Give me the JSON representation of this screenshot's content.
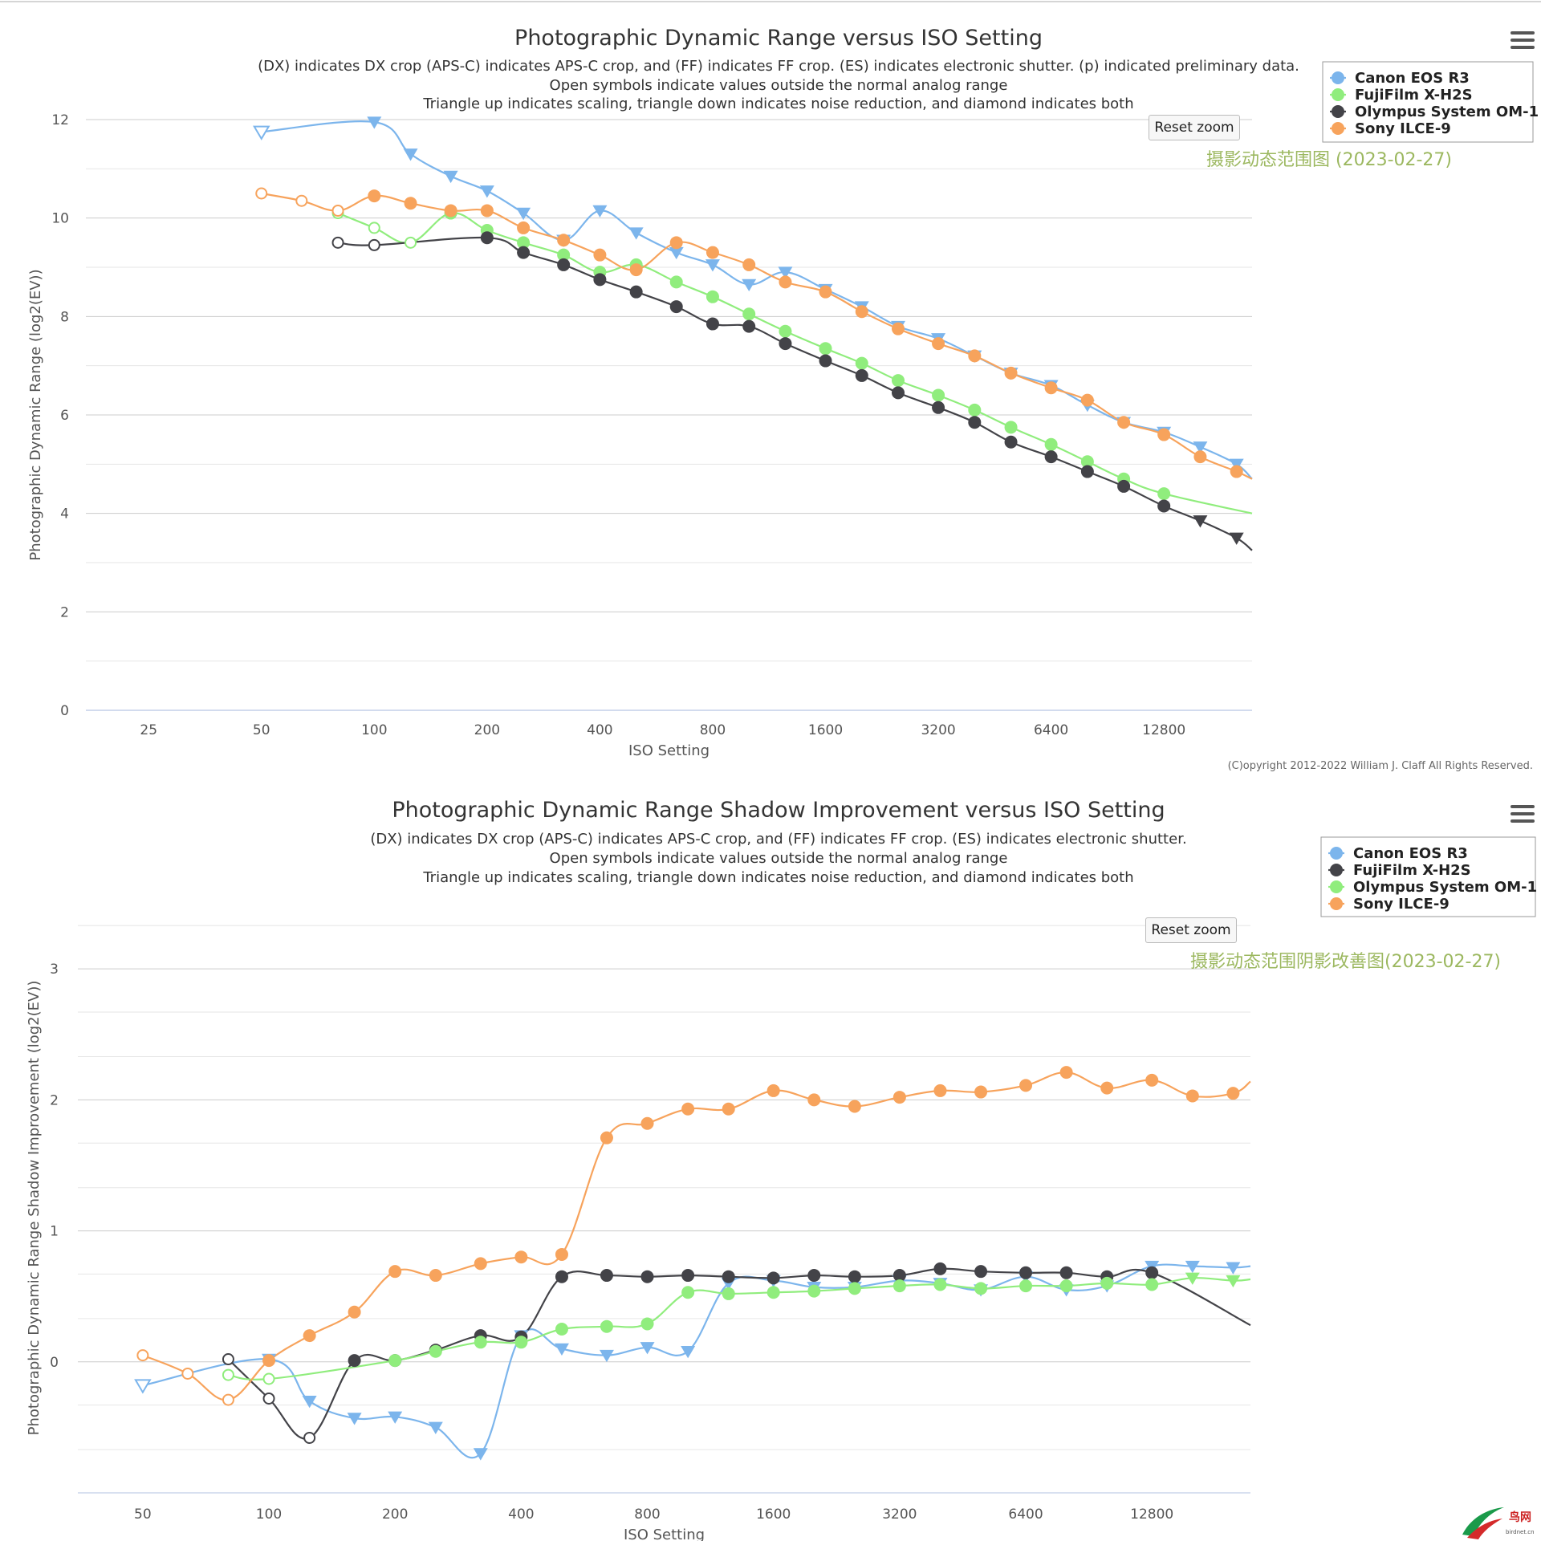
{
  "chart_data": [
    {
      "type": "line",
      "title": "Photographic Dynamic Range versus ISO Setting",
      "subtitles": [
        "(DX) indicates DX crop (APS-C) indicates APS-C crop, and (FF) indicates FF crop. (ES) indicates electronic shutter. (p) indicated preliminary data.",
        "Open symbols indicate values outside the normal analog range",
        "Triangle up indicates scaling, triangle down indicates noise reduction, and diamond indicates both"
      ],
      "xlabel": "ISO Setting",
      "ylabel": "Photographic Dynamic Range (log2(EV))",
      "x_scale": "log2",
      "xlim": [
        17,
        22000
      ],
      "ylim": [
        0,
        12
      ],
      "x_ticks": [
        25,
        50,
        100,
        200,
        400,
        800,
        1600,
        3200,
        6400,
        12800
      ],
      "x_tick_labels": [
        "25",
        "50",
        "100",
        "200",
        "400",
        "800",
        "1600",
        "3200",
        "6400",
        "12800"
      ],
      "y_ticks": [
        0,
        2,
        4,
        6,
        8,
        10,
        12
      ],
      "y_tick_labels": [
        "0",
        "2",
        "4",
        "6",
        "8",
        "10",
        "12"
      ],
      "legend_position": "top-right",
      "watermark": "摄影动态范围图 (2023-02-27)",
      "credit": "(C)opyright 2012-2022 William J. Claff All Rights Reserved.",
      "reset_label": "Reset zoom",
      "series": [
        {
          "name": "Canon EOS R3",
          "color": "#7cb5ec",
          "x": [
            50,
            100,
            125,
            160,
            200,
            250,
            320,
            400,
            500,
            640,
            800,
            1000,
            1250,
            1600,
            2000,
            2500,
            3200,
            4000,
            5000,
            6400,
            8000,
            10000,
            12800,
            16000,
            20000,
            22000
          ],
          "y": [
            11.75,
            11.95,
            11.3,
            10.85,
            10.55,
            10.1,
            9.55,
            10.15,
            9.7,
            9.3,
            9.05,
            8.65,
            8.9,
            8.55,
            8.2,
            7.8,
            7.55,
            7.2,
            6.85,
            6.6,
            6.2,
            5.85,
            5.65,
            5.35,
            5.0,
            4.7
          ],
          "markers": [
            "tri-down-open",
            "tri-down",
            "tri-down",
            "tri-down",
            "tri-down",
            "tri-down",
            "tri-down",
            "tri-down",
            "tri-down",
            "tri-down",
            "tri-down",
            "tri-down",
            "tri-down",
            "tri-down",
            "tri-down",
            "tri-down",
            "tri-down",
            "tri-down",
            "tri-down",
            "tri-down",
            "tri-down",
            "tri-down",
            "tri-down",
            "tri-down",
            "tri-down",
            "none"
          ]
        },
        {
          "name": "FujiFilm X-H2S",
          "color": "#90ed7d",
          "x": [
            80,
            100,
            125,
            160,
            200,
            250,
            320,
            400,
            500,
            640,
            800,
            1000,
            1250,
            1600,
            2000,
            2500,
            3200,
            4000,
            5000,
            6400,
            8000,
            10000,
            12800,
            22000
          ],
          "y": [
            10.1,
            9.8,
            9.5,
            10.1,
            9.75,
            9.5,
            9.25,
            8.9,
            9.05,
            8.7,
            8.4,
            8.05,
            7.7,
            7.35,
            7.05,
            6.7,
            6.4,
            6.1,
            5.75,
            5.4,
            5.05,
            4.7,
            4.4,
            4.0
          ],
          "markers": [
            "circle-open",
            "circle-open",
            "circle-open",
            "circle",
            "circle",
            "circle",
            "circle",
            "circle",
            "circle",
            "circle",
            "circle",
            "circle",
            "circle",
            "circle",
            "circle",
            "circle",
            "circle",
            "circle",
            "circle",
            "circle",
            "circle",
            "circle",
            "circle",
            "none"
          ]
        },
        {
          "name": "Olympus System OM-1",
          "color": "#434348",
          "x": [
            80,
            100,
            200,
            250,
            320,
            400,
            500,
            640,
            800,
            1000,
            1250,
            1600,
            2000,
            2500,
            3200,
            4000,
            5000,
            6400,
            8000,
            10000,
            12800,
            16000,
            20000,
            22000
          ],
          "y": [
            9.5,
            9.45,
            9.6,
            9.3,
            9.05,
            8.75,
            8.5,
            8.2,
            7.85,
            7.8,
            7.45,
            7.1,
            6.8,
            6.45,
            6.15,
            5.85,
            5.45,
            5.15,
            4.85,
            4.55,
            4.15,
            3.85,
            3.5,
            3.25
          ],
          "markers": [
            "circle-open",
            "circle-open",
            "circle",
            "circle",
            "circle",
            "circle",
            "circle",
            "circle",
            "circle",
            "circle",
            "circle",
            "circle",
            "circle",
            "circle",
            "circle",
            "circle",
            "circle",
            "circle",
            "circle",
            "circle",
            "circle",
            "tri-down",
            "tri-down",
            "none"
          ]
        },
        {
          "name": "Sony ILCE-9",
          "color": "#f7a35c",
          "x": [
            50,
            64,
            80,
            100,
            125,
            160,
            200,
            250,
            320,
            400,
            500,
            640,
            800,
            1000,
            1250,
            1600,
            2000,
            2500,
            3200,
            4000,
            5000,
            6400,
            8000,
            10000,
            12800,
            16000,
            20000,
            22000
          ],
          "y": [
            10.5,
            10.35,
            10.15,
            10.45,
            10.3,
            10.15,
            10.15,
            9.8,
            9.55,
            9.25,
            8.95,
            9.5,
            9.3,
            9.05,
            8.7,
            8.5,
            8.1,
            7.75,
            7.45,
            7.2,
            6.85,
            6.55,
            6.3,
            5.85,
            5.6,
            5.15,
            4.85,
            4.7
          ],
          "markers": [
            "circle-open",
            "circle-open",
            "circle-open",
            "circle",
            "circle",
            "circle",
            "circle",
            "circle",
            "circle",
            "circle",
            "circle",
            "circle",
            "circle",
            "circle",
            "circle",
            "circle",
            "circle",
            "circle",
            "circle",
            "circle",
            "circle",
            "circle",
            "circle",
            "circle",
            "circle",
            "circle",
            "circle",
            "none"
          ]
        }
      ]
    },
    {
      "type": "line",
      "title": "Photographic Dynamic Range Shadow Improvement versus ISO Setting",
      "subtitles": [
        "(DX) indicates DX crop (APS-C) indicates APS-C crop, and (FF) indicates FF crop. (ES) indicates electronic shutter.",
        "Open symbols indicate values outside the normal analog range",
        "Triangle up indicates scaling, triangle down indicates noise reduction, and diamond indicates both"
      ],
      "xlabel": "ISO Setting",
      "ylabel": "Photographic Dynamic Range Shadow Improvement (log2(EV))",
      "x_scale": "log2",
      "xlim": [
        35,
        22000
      ],
      "ylim": [
        -1,
        3.35
      ],
      "x_ticks": [
        50,
        100,
        200,
        400,
        800,
        1600,
        3200,
        6400,
        12800
      ],
      "x_tick_labels": [
        "50",
        "100",
        "200",
        "400",
        "800",
        "1600",
        "3200",
        "6400",
        "12800"
      ],
      "y_ticks": [
        0,
        1,
        2,
        3
      ],
      "y_tick_labels": [
        "0",
        "1",
        "2",
        "3"
      ],
      "legend_position": "top-right",
      "watermark": "摄影动态范围阴影改善图(2023-02-27)",
      "reset_label": "Reset zoom",
      "series": [
        {
          "name": "Canon EOS R3",
          "color": "#7cb5ec",
          "x": [
            50,
            100,
            125,
            160,
            200,
            250,
            320,
            400,
            500,
            640,
            800,
            1000,
            1250,
            1600,
            2000,
            2500,
            3200,
            4000,
            5000,
            6400,
            8000,
            10000,
            12800,
            16000,
            20000,
            22000
          ],
          "y": [
            -0.18,
            0.02,
            -0.3,
            -0.43,
            -0.42,
            -0.5,
            -0.7,
            0.2,
            0.1,
            0.05,
            0.11,
            0.08,
            0.6,
            0.62,
            0.57,
            0.57,
            0.62,
            0.6,
            0.55,
            0.65,
            0.55,
            0.58,
            0.73,
            0.73,
            0.72,
            0.73
          ],
          "markers": [
            "tri-down-open",
            "tri-down",
            "tri-down",
            "tri-down",
            "tri-down",
            "tri-down",
            "tri-down",
            "tri-down",
            "tri-down",
            "tri-down",
            "tri-down",
            "tri-down",
            "tri-down",
            "tri-down",
            "tri-down",
            "tri-down",
            "tri-down",
            "tri-down",
            "tri-down",
            "tri-down",
            "tri-down",
            "tri-down",
            "tri-down",
            "tri-down",
            "tri-down",
            "none"
          ]
        },
        {
          "name": "FujiFilm X-H2S",
          "color": "#434348",
          "x": [
            80,
            100,
            125,
            160,
            200,
            250,
            320,
            400,
            500,
            640,
            800,
            1000,
            1250,
            1600,
            2000,
            2500,
            3200,
            4000,
            5000,
            6400,
            8000,
            10000,
            12800,
            22000
          ],
          "y": [
            0.02,
            -0.28,
            -0.58,
            0.01,
            0.01,
            0.09,
            0.2,
            0.19,
            0.65,
            0.66,
            0.65,
            0.66,
            0.65,
            0.64,
            0.66,
            0.65,
            0.66,
            0.71,
            0.69,
            0.68,
            0.68,
            0.65,
            0.68,
            0.28
          ],
          "markers": [
            "circle-open",
            "circle-open",
            "circle-open",
            "circle",
            "circle",
            "circle",
            "circle",
            "circle",
            "circle",
            "circle",
            "circle",
            "circle",
            "circle",
            "circle",
            "circle",
            "circle",
            "circle",
            "circle",
            "circle",
            "circle",
            "circle",
            "circle",
            "circle",
            "none"
          ]
        },
        {
          "name": "Olympus System OM-1",
          "color": "#90ed7d",
          "x": [
            80,
            100,
            200,
            250,
            320,
            400,
            500,
            640,
            800,
            1000,
            1250,
            1600,
            2000,
            2500,
            3200,
            4000,
            5000,
            6400,
            8000,
            10000,
            12800,
            16000,
            20000,
            22000
          ],
          "y": [
            -0.1,
            -0.13,
            0.01,
            0.08,
            0.15,
            0.15,
            0.25,
            0.27,
            0.29,
            0.53,
            0.52,
            0.53,
            0.54,
            0.56,
            0.58,
            0.59,
            0.56,
            0.58,
            0.58,
            0.6,
            0.59,
            0.64,
            0.62,
            0.63
          ],
          "markers": [
            "circle-open",
            "circle-open",
            "circle",
            "circle",
            "circle",
            "circle",
            "circle",
            "circle",
            "circle",
            "circle",
            "circle",
            "circle",
            "circle",
            "circle",
            "circle",
            "circle",
            "circle",
            "circle",
            "circle",
            "circle",
            "circle",
            "tri-down",
            "tri-down",
            "none"
          ]
        },
        {
          "name": "Sony ILCE-9",
          "color": "#f7a35c",
          "x": [
            50,
            64,
            80,
            100,
            125,
            160,
            200,
            250,
            320,
            400,
            500,
            640,
            800,
            1000,
            1250,
            1600,
            2000,
            2500,
            3200,
            4000,
            5000,
            6400,
            8000,
            10000,
            12800,
            16000,
            20000,
            22000
          ],
          "y": [
            0.05,
            -0.09,
            -0.29,
            0.01,
            0.2,
            0.38,
            0.69,
            0.66,
            0.75,
            0.8,
            0.82,
            1.71,
            1.82,
            1.93,
            1.93,
            2.07,
            2.0,
            1.95,
            2.02,
            2.07,
            2.06,
            2.11,
            2.21,
            2.09,
            2.15,
            2.03,
            2.05,
            2.14
          ],
          "markers": [
            "circle-open",
            "circle-open",
            "circle-open",
            "circle",
            "circle",
            "circle",
            "circle",
            "circle",
            "circle",
            "circle",
            "circle",
            "circle",
            "circle",
            "circle",
            "circle",
            "circle",
            "circle",
            "circle",
            "circle",
            "circle",
            "circle",
            "circle",
            "circle",
            "circle",
            "circle",
            "circle",
            "circle",
            "none"
          ]
        }
      ]
    }
  ],
  "branding": {
    "logo_text": "鸟网",
    "logo_sub": "birdnet.cn"
  }
}
